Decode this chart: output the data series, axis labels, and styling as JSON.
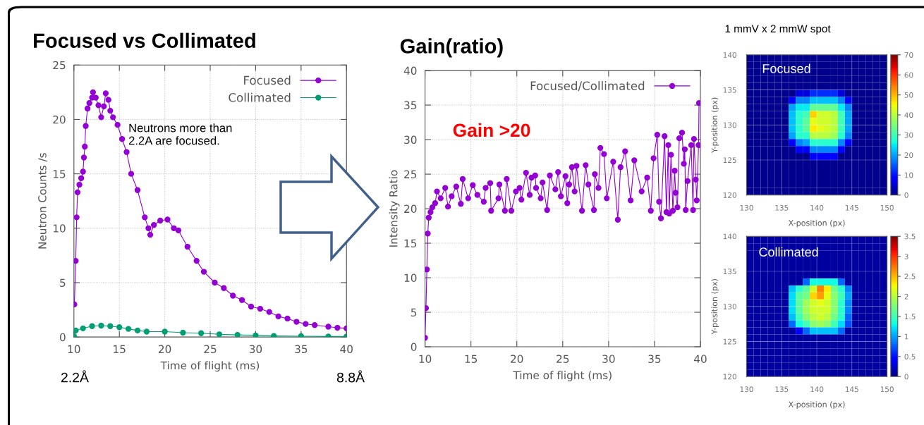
{
  "chart_data": [
    {
      "type": "line",
      "title": "Focused vs Collimated",
      "xlabel": "Time of flight (ms)",
      "ylabel": "Neutron Counts /s",
      "xlim": [
        10,
        40
      ],
      "xticks": [
        10,
        15,
        20,
        25,
        30,
        35,
        40
      ],
      "ylim": [
        0,
        25
      ],
      "yticks": [
        0,
        5,
        10,
        15,
        20,
        25
      ],
      "grid": true,
      "legend": "top right",
      "marker": "circle",
      "line_style": "solid",
      "annotations": [
        "Neutrons more than\n2.2A are focused.",
        "2.2Å",
        "8.8Å"
      ],
      "series": [
        {
          "name": "Focused",
          "color": "#9400d3",
          "x": [
            10.05,
            10.2,
            10.3,
            10.4,
            10.6,
            10.8,
            11.0,
            11.1,
            11.2,
            11.3,
            11.5,
            11.7,
            12.0,
            12.1,
            12.4,
            12.7,
            13.0,
            13.3,
            13.5,
            13.8,
            14.0,
            14.3,
            14.8,
            15.3,
            15.8,
            16.3,
            17.0,
            17.8,
            18.2,
            18.4,
            18.8,
            19.5,
            20.3,
            21.0,
            21.5,
            22.5,
            23.5,
            24.3,
            25.5,
            26.5,
            27.5,
            28.5,
            29.5,
            30.5,
            31.5,
            32.5,
            33.5,
            34.5,
            35.5,
            36.5,
            38.0,
            39.0,
            40.0
          ],
          "values": [
            3.0,
            7.0,
            11.0,
            13.3,
            14.0,
            14.6,
            15.2,
            16.5,
            17.5,
            19.4,
            21.0,
            21.5,
            22.0,
            22.5,
            22.0,
            21.3,
            20.2,
            21.2,
            22.4,
            21.8,
            20.8,
            20.2,
            19.5,
            18.2,
            17.0,
            15.0,
            13.5,
            11.0,
            10.0,
            9.4,
            10.3,
            10.7,
            10.8,
            10.0,
            9.8,
            8.3,
            7.0,
            6.0,
            5.0,
            4.5,
            3.8,
            3.4,
            2.8,
            2.6,
            2.3,
            1.9,
            1.7,
            1.4,
            1.2,
            1.1,
            0.95,
            0.85,
            0.8
          ]
        },
        {
          "name": "Collimated",
          "color": "#009e73",
          "x": [
            10.0,
            10.2,
            11,
            12,
            13,
            14,
            15,
            16,
            17,
            18,
            20,
            22,
            24,
            26,
            28,
            30,
            32,
            35,
            38,
            40
          ],
          "values": [
            0.1,
            0.6,
            0.8,
            1.0,
            1.05,
            1.0,
            0.9,
            0.75,
            0.6,
            0.5,
            0.5,
            0.4,
            0.35,
            0.25,
            0.2,
            0.15,
            0.1,
            0.08,
            0.05,
            0.05
          ]
        }
      ]
    },
    {
      "type": "line",
      "title": "Gain(ratio)",
      "xlabel": "Time of flight (ms)",
      "ylabel": "Intensity Ratio",
      "xlim": [
        10,
        40
      ],
      "xticks": [
        10,
        15,
        20,
        25,
        30,
        35,
        40
      ],
      "ylim": [
        0,
        40
      ],
      "yticks": [
        0,
        5,
        10,
        15,
        20,
        25,
        30,
        35,
        40
      ],
      "grid": true,
      "legend": "top right",
      "marker": "circle",
      "line_style": "solid",
      "annotations": [
        "Gain >20"
      ],
      "series": [
        {
          "name": "Focused/Collimated",
          "color": "#9400d3",
          "x": [
            10.0,
            10.1,
            10.2,
            10.3,
            10.4,
            10.6,
            10.8,
            11.1,
            11.3,
            11.7,
            12.2,
            12.5,
            12.9,
            13.4,
            13.9,
            14.1,
            14.7,
            15.2,
            15.7,
            16.4,
            16.6,
            17.1,
            17.2,
            18.0,
            18.1,
            18.7,
            18.9,
            19.4,
            19.9,
            20.3,
            20.5,
            21.0,
            21.4,
            21.6,
            22.0,
            22.1,
            22.6,
            22.8,
            23.3,
            23.6,
            24.2,
            24.5,
            24.8,
            25.3,
            25.5,
            25.7,
            26.0,
            26.3,
            26.5,
            27.1,
            27.5,
            27.8,
            28.4,
            28.5,
            28.9,
            29.1,
            29.5,
            29.8,
            30.5,
            31.0,
            31.3,
            31.8,
            32.4,
            32.8,
            33.6,
            34.2,
            34.6,
            34.9,
            35.3,
            35.5,
            35.7,
            36.1,
            36.3,
            36.5,
            36.6,
            36.8,
            37.0,
            37.2,
            37.3,
            37.5,
            37.7,
            38.0,
            38.2,
            38.3,
            38.4,
            38.6,
            39.0,
            39.2,
            39.3,
            39.5,
            39.6,
            39.8,
            39.85
          ],
          "values": [
            1.3,
            5.6,
            11.2,
            16.4,
            18.7,
            19.5,
            20.2,
            20.8,
            22.5,
            21.5,
            23.0,
            20.3,
            21.8,
            23.2,
            20.7,
            24.3,
            21.5,
            23.4,
            22.0,
            21.0,
            23.0,
            23.7,
            19.7,
            21.5,
            23.5,
            19.7,
            24.3,
            19.7,
            22.5,
            23.0,
            21.3,
            25.2,
            22.0,
            24.5,
            24.8,
            23.0,
            21.5,
            23.8,
            19.8,
            24.8,
            22.8,
            25.3,
            21.8,
            24.7,
            20.8,
            23.5,
            26.0,
            22.5,
            26.2,
            19.7,
            26.3,
            23.5,
            19.8,
            25.0,
            23.0,
            28.8,
            27.9,
            21.5,
            26.8,
            18.4,
            26.0,
            28.3,
            21.2,
            27.0,
            22.5,
            24.5,
            19.7,
            27.3,
            30.7,
            21.0,
            18.6,
            30.5,
            19.5,
            29.2,
            19.3,
            27.8,
            19.7,
            25.5,
            22.3,
            20.2,
            30.2,
            31.0,
            26.5,
            28.6,
            19.8,
            24.0,
            29.2,
            19.8,
            30.1,
            24.2,
            21.2,
            29.2,
            35.3
          ]
        }
      ]
    },
    {
      "type": "heatmap",
      "title": "1 mmV x 2 mmW spot",
      "xlabel": "X-position (px)",
      "ylabel": "Y-position (px)",
      "xlim": [
        130,
        150
      ],
      "xticks": [
        130,
        135,
        140,
        145,
        150
      ],
      "ylim": [
        120,
        140
      ],
      "yticks": [
        120,
        125,
        130,
        135,
        140
      ],
      "clim": [
        0,
        70
      ],
      "cticks": [
        0,
        10,
        20,
        30,
        40,
        50,
        60,
        70
      ],
      "grid": true,
      "annotations": [
        "Focused"
      ],
      "cells": [
        [
          1,
          1,
          1,
          1,
          1,
          1,
          1,
          1,
          1,
          1,
          1,
          1,
          1,
          1,
          1,
          1,
          1,
          1,
          1,
          1
        ],
        [
          1,
          1,
          1,
          1,
          1,
          1,
          1,
          1,
          1,
          1,
          1,
          1,
          1,
          1,
          1,
          1,
          1,
          1,
          1,
          1
        ],
        [
          1,
          1,
          1,
          1,
          1,
          1,
          1,
          1,
          1,
          1,
          1,
          1,
          1,
          1,
          1,
          1,
          1,
          1,
          1,
          1
        ],
        [
          1,
          1,
          1,
          1,
          1,
          1,
          1,
          1,
          1,
          1,
          1,
          1,
          1,
          1,
          1,
          1,
          1,
          1,
          1,
          1
        ],
        [
          1,
          1,
          1,
          1,
          1,
          1,
          1,
          1,
          1,
          1,
          1,
          1,
          1,
          1,
          1,
          1,
          1,
          1,
          1,
          1
        ],
        [
          1,
          1,
          1,
          1,
          1,
          1,
          1,
          6,
          6,
          12,
          12,
          12,
          12,
          6,
          1,
          1,
          1,
          1,
          1,
          1
        ],
        [
          1,
          1,
          1,
          1,
          1,
          1,
          8,
          18,
          18,
          22,
          22,
          22,
          22,
          18,
          8,
          1,
          1,
          1,
          1,
          1
        ],
        [
          1,
          1,
          1,
          1,
          1,
          1,
          20,
          25,
          25,
          33,
          33,
          33,
          33,
          25,
          18,
          1,
          1,
          1,
          1,
          1
        ],
        [
          1,
          1,
          1,
          1,
          1,
          1,
          22,
          28,
          30,
          48,
          42,
          42,
          40,
          30,
          20,
          1,
          1,
          1,
          1,
          1
        ],
        [
          1,
          1,
          1,
          1,
          1,
          1,
          22,
          28,
          32,
          44,
          42,
          42,
          40,
          30,
          20,
          1,
          1,
          1,
          1,
          1
        ],
        [
          1,
          1,
          1,
          1,
          1,
          1,
          22,
          28,
          32,
          46,
          44,
          42,
          40,
          30,
          20,
          1,
          1,
          1,
          1,
          1
        ],
        [
          1,
          1,
          1,
          1,
          1,
          1,
          20,
          28,
          28,
          40,
          40,
          40,
          38,
          28,
          18,
          1,
          1,
          1,
          1,
          1
        ],
        [
          1,
          1,
          1,
          1,
          1,
          1,
          8,
          18,
          20,
          28,
          28,
          28,
          28,
          18,
          8,
          1,
          1,
          1,
          1,
          1
        ],
        [
          1,
          1,
          1,
          1,
          1,
          1,
          1,
          8,
          8,
          18,
          18,
          18,
          18,
          8,
          1,
          1,
          1,
          1,
          1,
          1
        ],
        [
          1,
          1,
          1,
          1,
          1,
          1,
          1,
          1,
          1,
          8,
          8,
          8,
          8,
          1,
          1,
          1,
          1,
          1,
          1,
          1
        ],
        [
          1,
          1,
          1,
          1,
          1,
          1,
          1,
          1,
          1,
          1,
          1,
          1,
          1,
          1,
          1,
          1,
          1,
          1,
          1,
          1
        ],
        [
          1,
          1,
          1,
          1,
          1,
          1,
          1,
          1,
          1,
          1,
          1,
          1,
          1,
          1,
          1,
          1,
          1,
          1,
          1,
          1
        ],
        [
          1,
          1,
          1,
          1,
          1,
          1,
          1,
          1,
          1,
          1,
          1,
          1,
          1,
          1,
          1,
          1,
          1,
          1,
          1,
          1
        ],
        [
          1,
          1,
          1,
          1,
          1,
          1,
          1,
          1,
          1,
          1,
          1,
          1,
          1,
          1,
          1,
          1,
          1,
          1,
          1,
          1
        ],
        [
          1,
          1,
          1,
          1,
          1,
          1,
          1,
          1,
          1,
          1,
          1,
          1,
          1,
          1,
          1,
          1,
          1,
          1,
          1,
          1
        ]
      ]
    },
    {
      "type": "heatmap",
      "xlabel": "X-position (px)",
      "ylabel": "Y-position (px)",
      "xlim": [
        130,
        150
      ],
      "xticks": [
        130,
        135,
        140,
        145,
        150
      ],
      "ylim": [
        120,
        140
      ],
      "yticks": [
        120,
        125,
        130,
        135,
        140
      ],
      "clim": [
        0,
        3.5
      ],
      "cticks": [
        0,
        0.5,
        1,
        1.5,
        2,
        2.5,
        3,
        3.5
      ],
      "grid": true,
      "annotations": [
        "Collimated"
      ],
      "cells": [
        [
          0.1,
          0.1,
          0.1,
          0.1,
          0.1,
          0.1,
          0.1,
          0.1,
          0.1,
          0.1,
          0.1,
          0.1,
          0.1,
          0.1,
          0.1,
          0.1,
          0.1,
          0.1,
          0.1,
          0.1
        ],
        [
          0.1,
          0.1,
          0.1,
          0.1,
          0.1,
          0.1,
          0.1,
          0.1,
          0.1,
          0.1,
          0.1,
          0.1,
          0.1,
          0.1,
          0.1,
          0.1,
          0.1,
          0.1,
          0.1,
          0.1
        ],
        [
          0.1,
          0.1,
          0.1,
          0.1,
          0.1,
          0.1,
          0.1,
          0.1,
          0.1,
          0.1,
          0.1,
          0.1,
          0.1,
          0.1,
          0.1,
          0.1,
          0.1,
          0.1,
          0.1,
          0.1
        ],
        [
          0.1,
          0.1,
          0.1,
          0.1,
          0.1,
          0.1,
          0.1,
          0.1,
          0.1,
          0.1,
          0.1,
          0.1,
          0.1,
          0.1,
          0.1,
          0.1,
          0.1,
          0.1,
          0.1,
          0.1
        ],
        [
          0.1,
          0.1,
          0.1,
          0.1,
          0.1,
          0.1,
          0.1,
          0.1,
          0.1,
          0.1,
          0.1,
          0.1,
          0.1,
          0.1,
          0.1,
          0.1,
          0.1,
          0.1,
          0.1,
          0.1
        ],
        [
          0.1,
          0.1,
          0.1,
          0.1,
          0.1,
          0.1,
          0.1,
          0.1,
          0.1,
          0.1,
          0.1,
          0.1,
          0.1,
          0.1,
          0.1,
          0.1,
          0.1,
          0.1,
          0.1,
          0.1
        ],
        [
          0.1,
          0.1,
          0.1,
          0.1,
          0.1,
          0.1,
          0.1,
          0.1,
          0.8,
          1.3,
          1.3,
          1.3,
          1.3,
          0.8,
          0.1,
          0.1,
          0.1,
          0.1,
          0.1,
          0.1
        ],
        [
          0.1,
          0.1,
          0.1,
          0.1,
          0.1,
          0.1,
          1.1,
          1.4,
          1.6,
          2.1,
          2.7,
          2.3,
          1.7,
          1.4,
          0.9,
          0.1,
          0.1,
          0.1,
          0.1,
          0.1
        ],
        [
          0.1,
          0.1,
          0.1,
          0.1,
          0.1,
          0.1,
          1.2,
          1.6,
          1.7,
          2.4,
          2.6,
          2.2,
          1.8,
          1.5,
          1.0,
          0.1,
          0.1,
          0.1,
          0.1,
          0.1
        ],
        [
          0.1,
          0.1,
          0.1,
          0.1,
          0.1,
          0.1,
          1.2,
          1.6,
          1.9,
          2.1,
          2.2,
          2.1,
          1.8,
          1.4,
          0.9,
          0.1,
          0.1,
          0.1,
          0.1,
          0.1
        ],
        [
          0.1,
          0.1,
          0.1,
          0.1,
          0.1,
          0.1,
          1.2,
          1.6,
          1.9,
          2.1,
          2.1,
          2.1,
          1.8,
          1.4,
          0.9,
          0.1,
          0.1,
          0.1,
          0.1,
          0.1
        ],
        [
          0.1,
          0.1,
          0.1,
          0.1,
          0.1,
          0.1,
          1.1,
          1.5,
          1.8,
          2.0,
          2.1,
          2.0,
          1.7,
          1.4,
          0.8,
          0.1,
          0.1,
          0.1,
          0.1,
          0.1
        ],
        [
          0.1,
          0.1,
          0.1,
          0.1,
          0.1,
          0.1,
          0.8,
          1.3,
          1.5,
          1.8,
          1.9,
          1.8,
          1.5,
          1.2,
          0.7,
          0.1,
          0.1,
          0.1,
          0.1,
          0.1
        ],
        [
          0.1,
          0.1,
          0.1,
          0.1,
          0.1,
          0.1,
          0.1,
          0.4,
          0.8,
          1.1,
          1.1,
          1.1,
          1.1,
          0.8,
          0.1,
          0.1,
          0.1,
          0.1,
          0.1,
          0.1
        ],
        [
          0.1,
          0.1,
          0.1,
          0.1,
          0.1,
          0.1,
          0.1,
          0.1,
          0.1,
          0.1,
          0.1,
          0.1,
          0.1,
          0.1,
          0.1,
          0.1,
          0.1,
          0.1,
          0.1,
          0.1
        ],
        [
          0.1,
          0.1,
          0.1,
          0.1,
          0.1,
          0.1,
          0.1,
          0.1,
          0.1,
          0.1,
          0.1,
          0.1,
          0.1,
          0.1,
          0.1,
          0.1,
          0.1,
          0.1,
          0.1,
          0.1
        ],
        [
          0.1,
          0.1,
          0.1,
          0.1,
          0.1,
          0.1,
          0.1,
          0.1,
          0.1,
          0.1,
          0.1,
          0.1,
          0.1,
          0.1,
          0.1,
          0.1,
          0.1,
          0.1,
          0.1,
          0.1
        ],
        [
          0.1,
          0.1,
          0.1,
          0.1,
          0.1,
          0.1,
          0.1,
          0.1,
          0.1,
          0.1,
          0.1,
          0.1,
          0.1,
          0.1,
          0.1,
          0.1,
          0.1,
          0.1,
          0.1,
          0.1
        ],
        [
          0.1,
          0.1,
          0.1,
          0.1,
          0.1,
          0.1,
          0.1,
          0.1,
          0.1,
          0.1,
          0.1,
          0.1,
          0.1,
          0.1,
          0.1,
          0.1,
          0.1,
          0.1,
          0.1,
          0.1
        ],
        [
          0.1,
          0.1,
          0.1,
          0.1,
          0.1,
          0.1,
          0.1,
          0.1,
          0.1,
          0.1,
          0.1,
          0.1,
          0.1,
          0.1,
          0.1,
          0.1,
          0.1,
          0.1,
          0.1,
          0.1
        ]
      ]
    }
  ]
}
